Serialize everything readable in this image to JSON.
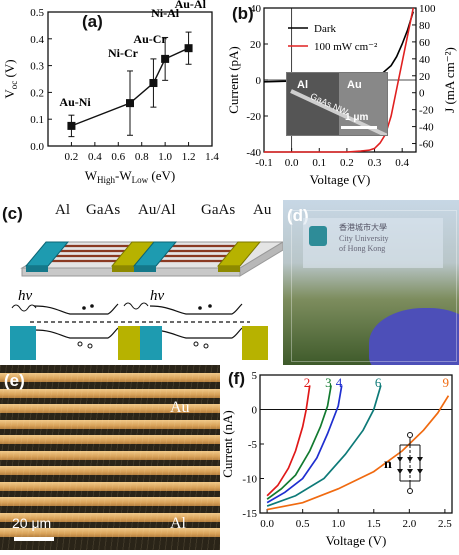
{
  "panel_a": {
    "label": "(a)",
    "chart_data": {
      "type": "scatter",
      "xlabel": "W_High-W_Low (eV)",
      "ylabel": "V_oc (V)",
      "xlim": [
        0.0,
        1.4
      ],
      "ylim": [
        0.0,
        0.5
      ],
      "xticks": [
        "0.2",
        "0.4",
        "0.6",
        "0.8",
        "1.0",
        "1.2",
        "1.4"
      ],
      "yticks": [
        "0.0",
        "0.1",
        "0.2",
        "0.3",
        "0.4",
        "0.5"
      ],
      "points": [
        {
          "label": "Au-Ni",
          "x": 0.2,
          "y": 0.075,
          "err": 0.04
        },
        {
          "label": "Ni-Cr",
          "x": 0.7,
          "y": 0.16,
          "err": 0.12
        },
        {
          "label": "Au-Cr",
          "x": 0.9,
          "y": 0.235,
          "err": 0.09
        },
        {
          "label": "Ni-Al",
          "x": 1.0,
          "y": 0.325,
          "err": 0.08
        },
        {
          "label": "Au-Al",
          "x": 1.2,
          "y": 0.365,
          "err": 0.06
        }
      ]
    }
  },
  "panel_b": {
    "label": "(b)",
    "chart_data": {
      "type": "line",
      "xlabel": "Voltage (V)",
      "ylabel_left": "Current (pA)",
      "ylabel_right": "J (mA cm⁻²)",
      "xlim": [
        -0.1,
        0.45
      ],
      "ylim_left": [
        -40,
        40
      ],
      "ylim_right": [
        -70,
        100
      ],
      "xticks": [
        "-0.1",
        "0.0",
        "0.1",
        "0.2",
        "0.3",
        "0.4"
      ],
      "yticks_left": [
        "-40",
        "-20",
        "0",
        "20",
        "40"
      ],
      "yticks_right": [
        "-60",
        "-40",
        "-20",
        "0",
        "20",
        "40",
        "60",
        "80",
        "100"
      ],
      "series": [
        {
          "name": "Dark",
          "color": "#000000",
          "axis": "left",
          "x": [
            -0.1,
            0.0,
            0.1,
            0.2,
            0.25,
            0.3,
            0.33,
            0.36,
            0.38,
            0.4,
            0.42,
            0.44
          ],
          "y": [
            -1.0,
            -0.6,
            -0.3,
            0.2,
            0.8,
            2.0,
            4.0,
            8.0,
            13.0,
            20.0,
            28.0,
            38.0
          ]
        },
        {
          "name": "100 mW cm⁻²",
          "color": "#e02020",
          "axis": "left",
          "x": [
            -0.1,
            0.0,
            0.1,
            0.2,
            0.25,
            0.28,
            0.3,
            0.32,
            0.34,
            0.36,
            0.38,
            0.4,
            0.42,
            0.44
          ],
          "y": [
            -40,
            -40,
            -40,
            -40,
            -39.5,
            -39,
            -38,
            -35,
            -30,
            -20,
            -5,
            10,
            25,
            40
          ]
        }
      ]
    },
    "inset": {
      "al": "Al",
      "au": "Au",
      "gaas": "GaAs NW",
      "scale": "1 μm"
    }
  },
  "panel_c": {
    "label": "(c)",
    "materials": [
      "Al",
      "GaAs",
      "Au/Al",
      "GaAs",
      "Au"
    ],
    "hv1": "hv",
    "hv2": "hv",
    "colors": {
      "al": "#1e9bb0",
      "au": "#b7b200",
      "wire": "#8a3a22",
      "base": "#d8d8d8"
    }
  },
  "panel_d": {
    "label": "(d)",
    "sign_lines": [
      "香港城市大學",
      "City University",
      "of Hong Kong"
    ]
  },
  "panel_e": {
    "label": "(e)",
    "top_electrode": "Au",
    "bottom_electrode": "Al",
    "scale": "20 μm"
  },
  "panel_f": {
    "label": "(f)",
    "chart_data": {
      "type": "line",
      "xlabel": "Voltage (V)",
      "ylabel": "Current (nA)",
      "xlim": [
        -0.1,
        2.6
      ],
      "ylim": [
        -15,
        5
      ],
      "xticks": [
        "0.0",
        "0.5",
        "1.0",
        "1.5",
        "2.0",
        "2.5"
      ],
      "yticks": [
        "-15",
        "-10",
        "-5",
        "0",
        "5"
      ],
      "series": [
        {
          "name": "2",
          "color": "#e01818",
          "x": [
            0.0,
            0.15,
            0.3,
            0.4,
            0.5,
            0.55,
            0.6
          ],
          "y": [
            -12.5,
            -11.0,
            -8.5,
            -6.0,
            -2.5,
            0.0,
            3.5
          ]
        },
        {
          "name": "3",
          "color": "#127a30",
          "x": [
            0.0,
            0.2,
            0.4,
            0.6,
            0.75,
            0.85,
            0.9
          ],
          "y": [
            -13.0,
            -11.5,
            -9.5,
            -6.0,
            -2.5,
            0.5,
            3.5
          ]
        },
        {
          "name": "4",
          "color": "#1f2fd0",
          "x": [
            0.0,
            0.25,
            0.5,
            0.7,
            0.85,
            1.0,
            1.05
          ],
          "y": [
            -13.5,
            -12.0,
            -10.0,
            -7.0,
            -3.5,
            0.5,
            3.5
          ]
        },
        {
          "name": "6",
          "color": "#0d7a78",
          "x": [
            0.0,
            0.4,
            0.8,
            1.1,
            1.35,
            1.5,
            1.6
          ],
          "y": [
            -14.0,
            -12.5,
            -10.0,
            -6.5,
            -3.0,
            0.0,
            3.5
          ]
        },
        {
          "name": "9",
          "color": "#f06a10",
          "x": [
            0.0,
            0.5,
            1.0,
            1.5,
            1.9,
            2.2,
            2.4,
            2.55
          ],
          "y": [
            -14.5,
            -13.5,
            -11.5,
            -9.0,
            -6.0,
            -3.0,
            -0.5,
            2.0
          ]
        }
      ]
    },
    "inset_label": "n"
  }
}
